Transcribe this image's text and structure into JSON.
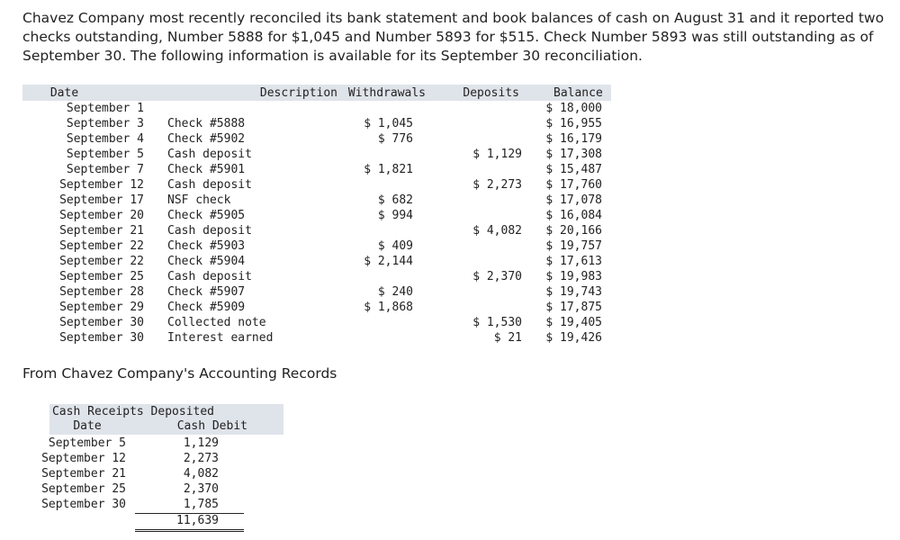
{
  "intro": "Chavez Company most recently reconciled its bank statement and book balances of cash on August 31 and it reported two checks outstanding, Number 5888 for $1,045 and Number 5893 for $515. Check Number 5893 was still outstanding as of September 30. The following information is available for its September 30 reconciliation.",
  "bank_statement": {
    "headers": {
      "date": "Date",
      "description": "Description",
      "withdrawals": "Withdrawals",
      "deposits": "Deposits",
      "balance": "Balance"
    },
    "rows": [
      {
        "date": "September 1",
        "description": "",
        "withdrawal": "",
        "deposit": "",
        "balance": "$ 18,000"
      },
      {
        "date": "September 3",
        "description": "Check #5888",
        "withdrawal": "$ 1,045",
        "deposit": "",
        "balance": "$ 16,955"
      },
      {
        "date": "September 4",
        "description": "Check #5902",
        "withdrawal": "$ 776",
        "deposit": "",
        "balance": "$ 16,179"
      },
      {
        "date": "September 5",
        "description": "Cash deposit",
        "withdrawal": "",
        "deposit": "$ 1,129",
        "balance": "$ 17,308"
      },
      {
        "date": "September 7",
        "description": "Check #5901",
        "withdrawal": "$ 1,821",
        "deposit": "",
        "balance": "$ 15,487"
      },
      {
        "date": "September 12",
        "description": "Cash deposit",
        "withdrawal": "",
        "deposit": "$ 2,273",
        "balance": "$ 17,760"
      },
      {
        "date": "September 17",
        "description": "NSF check",
        "withdrawal": "$ 682",
        "deposit": "",
        "balance": "$ 17,078"
      },
      {
        "date": "September 20",
        "description": "Check #5905",
        "withdrawal": "$ 994",
        "deposit": "",
        "balance": "$ 16,084"
      },
      {
        "date": "September 21",
        "description": "Cash deposit",
        "withdrawal": "",
        "deposit": "$ 4,082",
        "balance": "$ 20,166"
      },
      {
        "date": "September 22",
        "description": "Check #5903",
        "withdrawal": "$ 409",
        "deposit": "",
        "balance": "$ 19,757"
      },
      {
        "date": "September 22",
        "description": "Check #5904",
        "withdrawal": "$ 2,144",
        "deposit": "",
        "balance": "$ 17,613"
      },
      {
        "date": "September 25",
        "description": "Cash deposit",
        "withdrawal": "",
        "deposit": "$ 2,370",
        "balance": "$ 19,983"
      },
      {
        "date": "September 28",
        "description": "Check #5907",
        "withdrawal": "$ 240",
        "deposit": "",
        "balance": "$ 19,743"
      },
      {
        "date": "September 29",
        "description": "Check #5909",
        "withdrawal": "$ 1,868",
        "deposit": "",
        "balance": "$ 17,875"
      },
      {
        "date": "September 30",
        "description": "Collected note",
        "withdrawal": "",
        "deposit": "$ 1,530",
        "balance": "$ 19,405"
      },
      {
        "date": "September 30",
        "description": "Interest earned",
        "withdrawal": "",
        "deposit": "$ 21",
        "balance": "$ 19,426"
      }
    ]
  },
  "records_title": "From Chavez Company's Accounting Records",
  "cash_receipts": {
    "title": "Cash Receipts Deposited",
    "date_header": "Date",
    "amount_header": "Cash Debit",
    "rows": [
      {
        "date": "September 5",
        "amount": "1,129"
      },
      {
        "date": "September 12",
        "amount": "2,273"
      },
      {
        "date": "September 21",
        "amount": "4,082"
      },
      {
        "date": "September 25",
        "amount": "2,370"
      },
      {
        "date": "September 30",
        "amount": "1,785"
      }
    ],
    "total": "11,639"
  }
}
